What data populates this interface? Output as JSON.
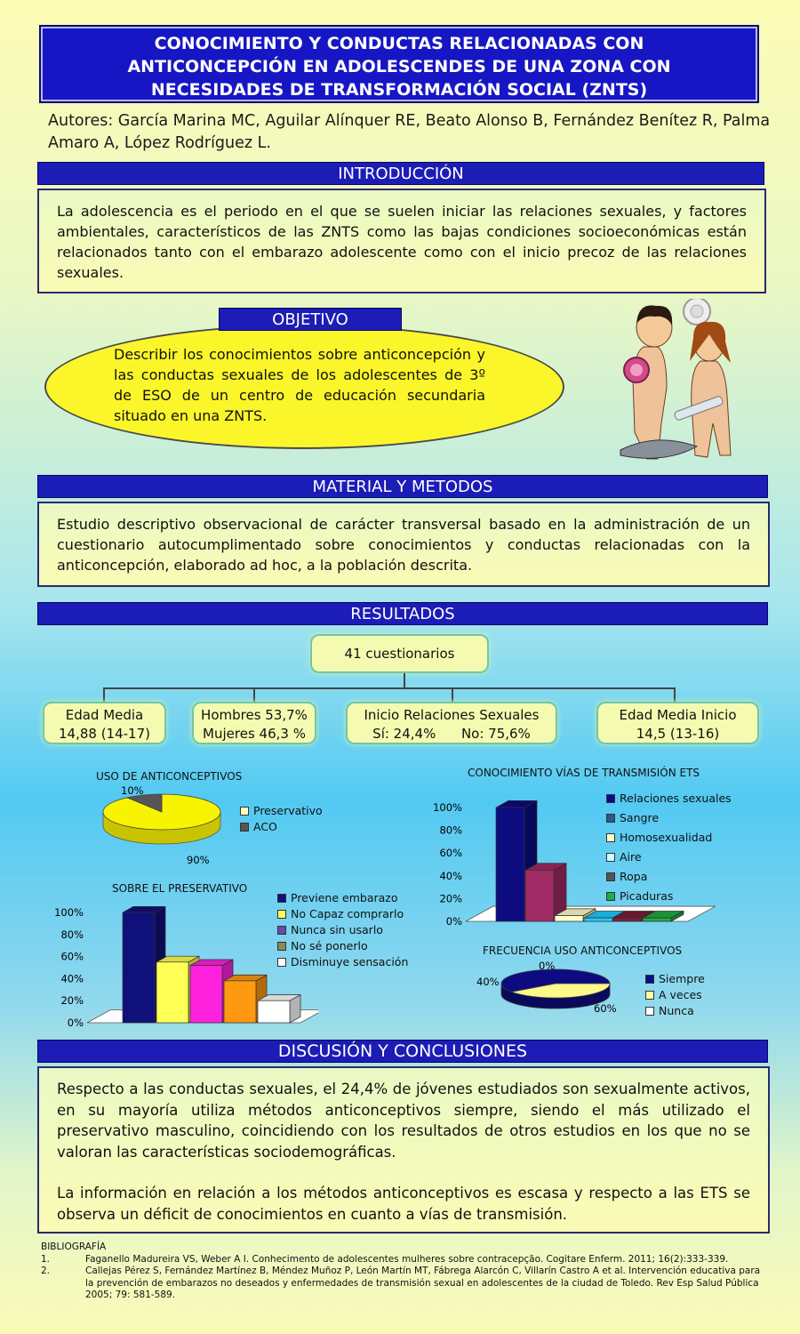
{
  "title": {
    "line1": "CONOCIMIENTO Y CONDUCTAS RELACIONADAS CON",
    "line2": "ANTICONCEPCIÓN EN ADOLESCENDES DE UNA ZONA CON",
    "line3": "NECESIDADES DE TRANSFORMACIÓN SOCIAL (ZNTS)"
  },
  "authors": "Autores: García Marina MC, Aguilar Alínquer RE, Beato Alonso B, Fernández Benítez R, Palma Amaro A, López Rodríguez L.",
  "intro": {
    "heading": "INTRODUCCIÓN",
    "text": "La adolescencia es el periodo en el que se suelen iniciar las relaciones sexuales, y factores ambientales, característicos de las ZNTS como las bajas condiciones socioeconómicas están relacionados tanto con el embarazo adolescente como con el inicio precoz de las relaciones sexuales."
  },
  "objetivo": {
    "heading": "OBJETIVO",
    "text": "Describir los conocimientos sobre anticoncepción y las conductas sexuales de los adolescentes de 3º de ESO de un centro de educación secundaria situado en una ZNTS."
  },
  "metodos": {
    "heading": "MATERIAL Y METODOS",
    "text": "Estudio descriptivo observacional de carácter transversal basado en la administración de un cuestionario autocumplimentado sobre conocimientos y conductas relacionadas con la anticoncepción, elaborado ad hoc, a la población descrita."
  },
  "resultados": {
    "heading": "RESULTADOS",
    "root": "41 cuestionarios",
    "boxes": [
      {
        "line1": "Edad Media",
        "line2": "14,88 (14-17)"
      },
      {
        "line1": "Hombres 53,7%",
        "line2": "Mujeres 46,3 %"
      },
      {
        "line1": "Inicio Relaciones Sexuales",
        "line2": "Sí: 24,4%      No: 75,6%"
      },
      {
        "line1": "Edad Media Inicio",
        "line2": "14,5 (13-16)"
      }
    ]
  },
  "chart_data": [
    {
      "type": "pie",
      "title": "USO DE ANTICONCEPTIVOS",
      "labels": [
        "Preservativo",
        "ACO"
      ],
      "values": [
        90,
        10
      ],
      "value_labels": [
        "90%",
        "10%"
      ],
      "colors": [
        "#f8f400",
        "#555555"
      ]
    },
    {
      "type": "bar",
      "title": "SOBRE EL PRESERVATIVO",
      "categories": [
        "Previene embarazo",
        "No Capaz comprarlo",
        "Nunca sin usarlo",
        "No sé ponerlo",
        "Disminuye sensación"
      ],
      "values": [
        100,
        55,
        52,
        38,
        20
      ],
      "yticks": [
        "100%",
        "80%",
        "60%",
        "40%",
        "20%",
        "0%"
      ],
      "ylim": [
        0,
        100
      ],
      "colors": [
        "#10107a",
        "#ffff55",
        "#ff22dd",
        "#ff9911",
        "#ffffff"
      ]
    },
    {
      "type": "bar",
      "title": "CONOCIMIENTO VÍAS DE TRANSMISIÓN ETS",
      "categories": [
        "Relaciones sexuales",
        "Sangre",
        "Homosexualidad",
        "Aire",
        "Ropa",
        "Picaduras"
      ],
      "values": [
        100,
        45,
        5,
        3,
        3,
        3
      ],
      "yticks": [
        "100%",
        "80%",
        "60%",
        "40%",
        "20%",
        "0%"
      ],
      "ylim": [
        0,
        100
      ],
      "colors": [
        "#0c0c80",
        "#a02a63",
        "#ffffcc",
        "#22ccff",
        "#7a1f3a",
        "#22aa44"
      ]
    },
    {
      "type": "pie",
      "title": "FRECUENCIA USO ANTICONCEPTIVOS",
      "labels": [
        "Siempre",
        "A veces",
        "Nunca"
      ],
      "values": [
        60,
        40,
        0
      ],
      "value_labels": [
        "60%",
        "40%",
        "0%"
      ],
      "colors": [
        "#0c0c80",
        "#fff88a",
        "#ffffff"
      ]
    }
  ],
  "discusion": {
    "heading": "DISCUSIÓN Y CONCLUSIONES",
    "p1": "Respecto a las conductas sexuales, el 24,4% de jóvenes estudiados son sexualmente activos, en su mayoría utiliza métodos anticonceptivos siempre, siendo el más utilizado el preservativo masculino, coincidiendo con los resultados de otros estudios en los que no se valoran las características sociodemográficas.",
    "p2": "La información en relación a los métodos anticonceptivos es escasa y respecto a las ETS se observa un déficit de conocimientos en cuanto a vías de transmisión."
  },
  "bibliografia": {
    "heading": "BIBLIOGRAFÍA",
    "items": [
      {
        "num": "1.",
        "text": "Faganello Madureira VS,  Weber A I. Conhecimento de adolescentes mulheres sobre contracepção. Cogitare Enferm. 2011; 16(2):333-339."
      },
      {
        "num": "2.",
        "text": "Callejas Pérez S, Fernández Martínez B, Méndez Muñoz P, León Martín MT, Fábrega Alarcón C, Villarín Castro A et al. Intervención educativa para la prevención de embarazos no deseados y enfermedades de transmisión sexual en adolescentes de la ciudad de Toledo. Rev Esp Salud Pública 2005; 79: 581-589."
      }
    ]
  }
}
